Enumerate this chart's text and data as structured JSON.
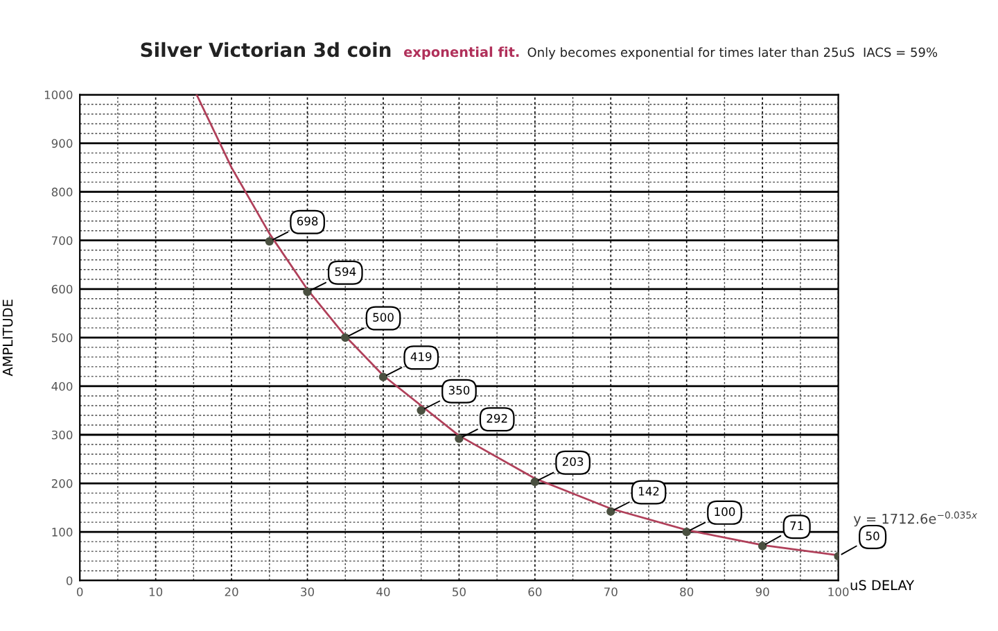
{
  "chart_data": {
    "type": "scatter",
    "title": "Silver Victorian 3d coin",
    "subtitle": "exponential fit.",
    "xlabel": "uS DELAY",
    "ylabel": "AMPLITUDE",
    "annotations": [
      "Only becomes exponential for times later than 25uS  IACS = 59%",
      "y = 1712.6e$^{−0.035x}$"
    ],
    "xlim": [
      0,
      100
    ],
    "ylim": [
      0,
      1000
    ],
    "xticks": [
      0,
      10,
      20,
      30,
      40,
      50,
      60,
      70,
      80,
      90,
      100
    ],
    "yticks": [
      0,
      100,
      200,
      300,
      400,
      500,
      600,
      700,
      800,
      900,
      1000
    ],
    "grid": true,
    "series": [
      {
        "type": "line",
        "color": "#b0405a",
        "x": [
          15.4,
          20,
          25,
          30,
          35,
          40,
          50,
          60,
          70,
          80,
          90,
          100
        ],
        "values": [
          1000,
          850,
          714,
          599,
          503,
          422,
          298,
          210,
          148,
          104,
          73,
          52
        ],
        "line_style": "solid"
      },
      {
        "color": "#4a5040",
        "marker": "circle",
        "x": [
          25,
          30,
          35,
          40,
          45,
          50,
          60,
          70,
          80,
          90,
          100
        ],
        "values": [
          698,
          594,
          500,
          419,
          350,
          292,
          203,
          142,
          100,
          71,
          50
        ],
        "data_labels": true
      }
    ]
  }
}
